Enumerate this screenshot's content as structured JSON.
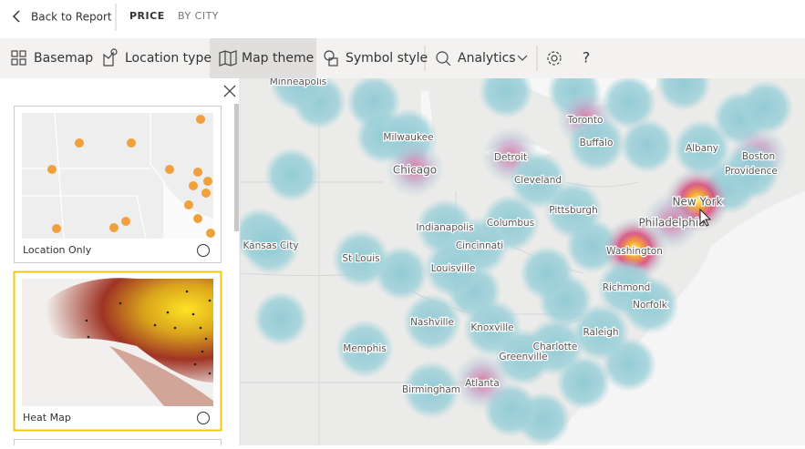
{
  "header": {
    "back": "Back to Report",
    "tabs": [
      "PRICE",
      "BY CITY"
    ]
  },
  "toolbar": {
    "items": [
      "Basemap",
      "Location type",
      "Map theme",
      "Symbol style",
      "Analytics"
    ],
    "help": "?"
  },
  "panel": {
    "options": [
      "Location Only",
      "Heat Map"
    ]
  },
  "map": {
    "cities": [
      "Minneapolis",
      "Milwaukee",
      "Chicago",
      "Detroit",
      "Toronto",
      "Buffalo",
      "Albany",
      "Boston",
      "Providence",
      "Cleveland",
      "New York",
      "Pittsburgh",
      "Philadelphia",
      "Indianapolis",
      "Columbus",
      "Kansas City",
      "Cincinnati",
      "St Louis",
      "Louisville",
      "Washington",
      "Richmond",
      "Norfolk",
      "Nashville",
      "Knoxville",
      "Raleigh",
      "Memphis",
      "Charlotte",
      "Greenville",
      "Birmingham",
      "Atlanta"
    ]
  }
}
